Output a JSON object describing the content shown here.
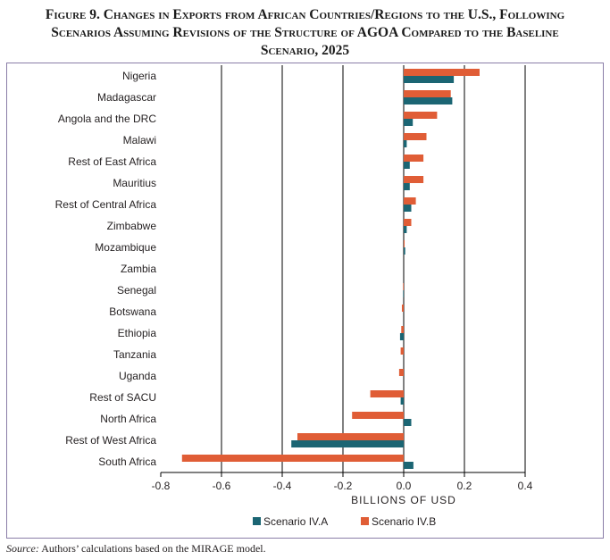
{
  "title": {
    "line1": "Figure 9. Changes in Exports from African Countries/Regions to the U.S., Following",
    "line2": "Scenarios Assuming Revisions of the Structure of AGOA Compared to the Baseline",
    "line3": "Scenario, 2025"
  },
  "source": {
    "label": "Source:",
    "text": "Authors’ calculations based on the MIRAGE model."
  },
  "colors": {
    "scenario_a": "#1b6573",
    "scenario_b": "#e05d36",
    "gridline": "#000000",
    "frame": "#8a7da8"
  },
  "chart_data": {
    "type": "bar",
    "orientation": "horizontal",
    "categories": [
      "Nigeria",
      "Madagascar",
      "Angola and the DRC",
      "Malawi",
      "Rest of East Africa",
      "Mauritius",
      "Rest of Central Africa",
      "Zimbabwe",
      "Mozambique",
      "Zambia",
      "Senegal",
      "Botswana",
      "Ethiopia",
      "Tanzania",
      "Uganda",
      "Rest of SACU",
      "North Africa",
      "Rest of West Africa",
      "South Africa"
    ],
    "series": [
      {
        "name": "Scenario IV.A",
        "color": "#1b6573",
        "values": [
          0.165,
          0.16,
          0.03,
          0.01,
          0.02,
          0.02,
          0.025,
          0.01,
          0.005,
          0.0,
          -0.002,
          0.0,
          -0.012,
          0.0,
          0.0,
          -0.01,
          0.025,
          -0.37,
          0.032
        ]
      },
      {
        "name": "Scenario IV.B",
        "color": "#e05d36",
        "values": [
          0.25,
          0.155,
          0.11,
          0.075,
          0.065,
          0.065,
          0.04,
          0.025,
          0.003,
          0.0,
          -0.002,
          -0.006,
          -0.008,
          -0.01,
          -0.015,
          -0.11,
          -0.17,
          -0.35,
          -0.73
        ]
      }
    ],
    "xlabel": "BILLIONS OF USD",
    "ylabel": "",
    "xlim": [
      -0.8,
      0.4
    ],
    "xticks": [
      -0.8,
      -0.6,
      -0.4,
      -0.2,
      0.0,
      0.2,
      0.4
    ],
    "xtick_labels": [
      "-0.8",
      "-0.6",
      "-0.4",
      "-0.2",
      "0.0",
      "0.2",
      "0.4"
    ],
    "grid": "vertical gridlines",
    "legend_position": "bottom"
  }
}
